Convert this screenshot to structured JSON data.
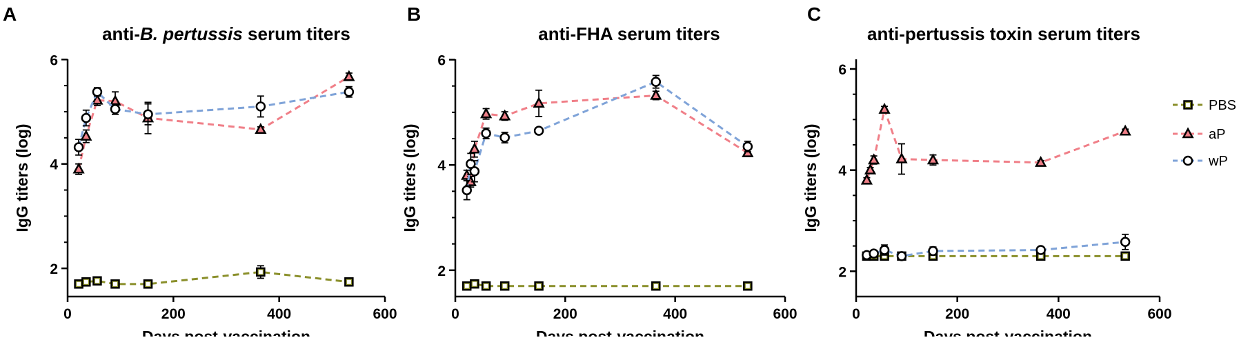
{
  "chart_data": [
    {
      "panel": "A",
      "type": "line",
      "title_prefix": "anti-",
      "title_italic": "B. pertussis",
      "title_suffix": " serum titers",
      "xlabel": "Days post-vaccination",
      "ylabel": "IgG titers (log)",
      "xlim": [
        0,
        600
      ],
      "ylim": [
        1.5,
        6.0
      ],
      "xticks": [
        0,
        200,
        400,
        600
      ],
      "yticks": [
        2,
        4,
        6
      ],
      "series": [
        {
          "name": "PBS",
          "marker": "square",
          "color": "#8a8f2a",
          "x": [
            21,
            35,
            56,
            90,
            152,
            365,
            532
          ],
          "y": [
            1.7,
            1.74,
            1.76,
            1.7,
            1.7,
            1.93,
            1.74
          ],
          "err": [
            0.02,
            0.03,
            0.03,
            0.02,
            0.02,
            0.12,
            0.03
          ]
        },
        {
          "name": "aP",
          "marker": "triangle",
          "color": "#f07f88",
          "x": [
            21,
            35,
            56,
            90,
            152,
            365,
            532
          ],
          "y": [
            3.9,
            4.53,
            5.22,
            5.2,
            4.88,
            4.66,
            5.67
          ],
          "err": [
            0.1,
            0.12,
            0.1,
            0.18,
            0.3,
            0.05,
            0.07
          ]
        },
        {
          "name": "wP",
          "marker": "circle",
          "color": "#7fa3d8",
          "x": [
            21,
            35,
            56,
            90,
            152,
            365,
            532
          ],
          "y": [
            4.32,
            4.88,
            5.38,
            5.05,
            4.95,
            5.1,
            5.38
          ],
          "err": [
            0.15,
            0.15,
            0.08,
            0.1,
            0.2,
            0.2,
            0.1
          ]
        }
      ]
    },
    {
      "panel": "B",
      "type": "line",
      "title_prefix": "anti-FHA serum titers",
      "title_italic": "",
      "title_suffix": "",
      "xlabel": "Days post-vaccination",
      "ylabel": "IgG titers (log)",
      "xlim": [
        0,
        600
      ],
      "ylim": [
        1.5,
        6.0
      ],
      "xticks": [
        0,
        200,
        400,
        600
      ],
      "yticks": [
        2,
        4,
        6
      ],
      "series": [
        {
          "name": "PBS",
          "marker": "square",
          "color": "#8a8f2a",
          "x": [
            21,
            35,
            56,
            90,
            152,
            365,
            532
          ],
          "y": [
            1.7,
            1.74,
            1.7,
            1.7,
            1.7,
            1.7,
            1.7
          ],
          "err": [
            0.02,
            0.03,
            0.02,
            0.02,
            0.02,
            0.02,
            0.02
          ]
        },
        {
          "name": "aP",
          "marker": "triangle",
          "color": "#f07f88",
          "x": [
            21,
            28,
            35,
            56,
            90,
            152,
            365,
            532
          ],
          "y": [
            3.8,
            3.68,
            4.3,
            4.97,
            4.93,
            5.17,
            5.32,
            4.23
          ],
          "err": [
            0.1,
            0.1,
            0.15,
            0.1,
            0.08,
            0.25,
            0.08,
            0.06
          ]
        },
        {
          "name": "wP",
          "marker": "circle",
          "color": "#7fa3d8",
          "x": [
            21,
            28,
            35,
            56,
            90,
            152,
            365,
            532
          ],
          "y": [
            3.52,
            4.02,
            3.88,
            4.6,
            4.52,
            4.65,
            5.58,
            4.35
          ],
          "err": [
            0.18,
            0.2,
            0.2,
            0.1,
            0.1,
            0.05,
            0.12,
            0.1
          ]
        }
      ]
    },
    {
      "panel": "C",
      "type": "line",
      "title_prefix": "anti-pertussis toxin serum titers",
      "title_italic": "",
      "title_suffix": "",
      "xlabel": "Days post-vaccination",
      "ylabel": "IgG titers (log)",
      "xlim": [
        0,
        600
      ],
      "ylim": [
        1.5,
        6.0
      ],
      "xticks": [
        0,
        200,
        400,
        600
      ],
      "yticks": [
        2,
        4,
        6
      ],
      "series": [
        {
          "name": "PBS",
          "marker": "square",
          "color": "#8a8f2a",
          "x": [
            21,
            35,
            56,
            90,
            152,
            365,
            532
          ],
          "y": [
            2.3,
            2.3,
            2.3,
            2.3,
            2.3,
            2.3,
            2.3
          ],
          "err": [
            0.02,
            0.02,
            0.02,
            0.02,
            0.02,
            0.02,
            0.02
          ]
        },
        {
          "name": "aP",
          "marker": "triangle",
          "color": "#f07f88",
          "x": [
            21,
            28,
            35,
            56,
            90,
            152,
            365,
            532
          ],
          "y": [
            3.8,
            4.0,
            4.2,
            5.2,
            4.22,
            4.2,
            4.15,
            4.77
          ],
          "err": [
            0.05,
            0.05,
            0.08,
            0.06,
            0.3,
            0.1,
            0.04,
            0.04
          ]
        },
        {
          "name": "wP",
          "marker": "circle",
          "color": "#7fa3d8",
          "x": [
            21,
            35,
            56,
            90,
            152,
            365,
            532
          ],
          "y": [
            2.32,
            2.35,
            2.42,
            2.3,
            2.4,
            2.42,
            2.58
          ],
          "err": [
            0.03,
            0.05,
            0.1,
            0.03,
            0.08,
            0.04,
            0.15
          ]
        }
      ]
    }
  ],
  "legend": {
    "placement": "right",
    "items": [
      {
        "name": "PBS",
        "marker": "square",
        "color": "#8a8f2a"
      },
      {
        "name": "aP",
        "marker": "triangle",
        "color": "#f07f88"
      },
      {
        "name": "wP",
        "marker": "circle",
        "color": "#7fa3d8"
      }
    ]
  }
}
